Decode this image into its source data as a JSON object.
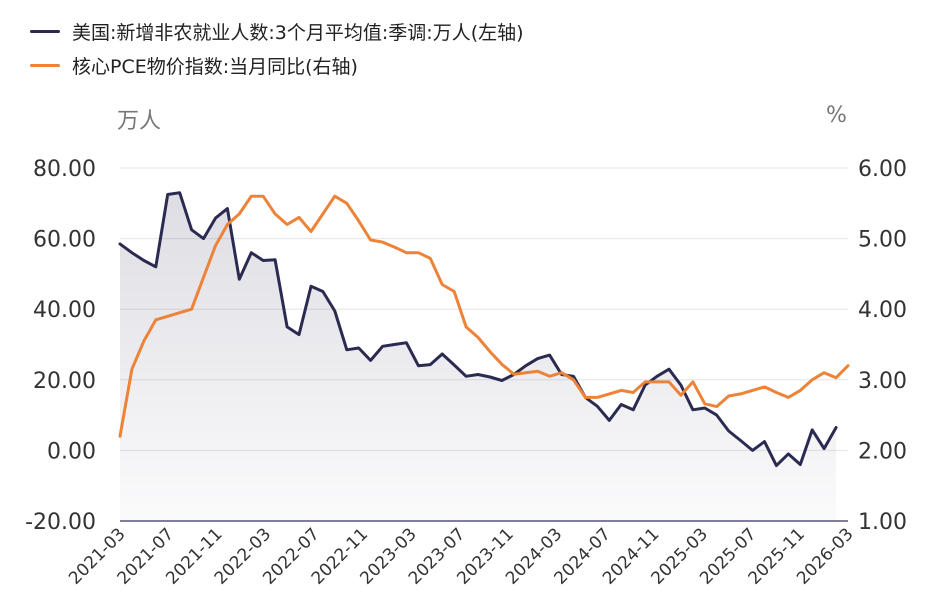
{
  "chart_data": {
    "type": "line",
    "title": "",
    "series": [
      {
        "name": "美国:新增非农就业人数:3个月平均值:季调:万人(左轴)",
        "axis": "left",
        "color": "#2b2b52",
        "values": [
          58.5,
          56.0,
          53.8,
          52.0,
          72.5,
          73.0,
          62.5,
          60.0,
          65.8,
          68.5,
          48.5,
          56.0,
          53.8,
          54.0,
          35.0,
          32.8,
          46.5,
          45.0,
          39.5,
          28.5,
          29.0,
          25.5,
          29.5,
          30.0,
          30.5,
          24.0,
          24.3,
          27.3,
          24.2,
          21.0,
          21.5,
          20.8,
          19.8,
          21.5,
          24.0,
          26.0,
          27.0,
          21.5,
          21.0,
          15.0,
          12.5,
          8.5,
          13.0,
          11.5,
          18.5,
          21.0,
          23.0,
          18.5,
          11.5,
          12.0,
          10.0,
          5.5,
          2.8,
          0.0,
          2.5,
          -4.3,
          -1.0,
          -4.0,
          5.8,
          0.5,
          6.5
        ]
      },
      {
        "name": "核心PCE物价指数:当月同比(右轴)",
        "axis": "right",
        "color": "#ed8338",
        "values": [
          2.2,
          3.15,
          3.55,
          3.85,
          3.9,
          3.95,
          4.0,
          4.45,
          4.9,
          5.2,
          5.35,
          5.6,
          5.6,
          5.35,
          5.2,
          5.3,
          5.1,
          5.35,
          5.6,
          5.5,
          5.25,
          4.98,
          4.95,
          4.88,
          4.8,
          4.8,
          4.72,
          4.35,
          4.25,
          3.75,
          3.6,
          3.4,
          3.22,
          3.08,
          3.1,
          3.12,
          3.05,
          3.1,
          3.0,
          2.75,
          2.75,
          2.8,
          2.85,
          2.82,
          2.97,
          2.97,
          2.97,
          2.78,
          2.97,
          2.66,
          2.62,
          2.77,
          2.8,
          2.85,
          2.9,
          2.82,
          2.75,
          2.85,
          3.0,
          3.1,
          3.03,
          3.2
        ]
      }
    ],
    "x": {
      "start": "2021-03",
      "tick_labels": [
        "2021-03",
        "2021-07",
        "2021-11",
        "2022-03",
        "2022-07",
        "2022-11",
        "2023-03",
        "2023-07",
        "2023-11",
        "2024-03",
        "2024-07",
        "2024-11",
        "2025-03",
        "2025-07",
        "2025-11",
        "2026-03"
      ]
    },
    "y_left": {
      "unit": "万人",
      "range": [
        -20,
        80
      ],
      "ticks": [
        "-20.00",
        "0.00",
        "20.00",
        "40.00",
        "60.00",
        "80.00"
      ]
    },
    "y_right": {
      "unit": "%",
      "range": [
        1.0,
        6.0
      ],
      "ticks": [
        "1.00",
        "2.00",
        "3.00",
        "4.00",
        "5.00",
        "6.00"
      ]
    },
    "grid": true,
    "legend_position": "top-left"
  }
}
